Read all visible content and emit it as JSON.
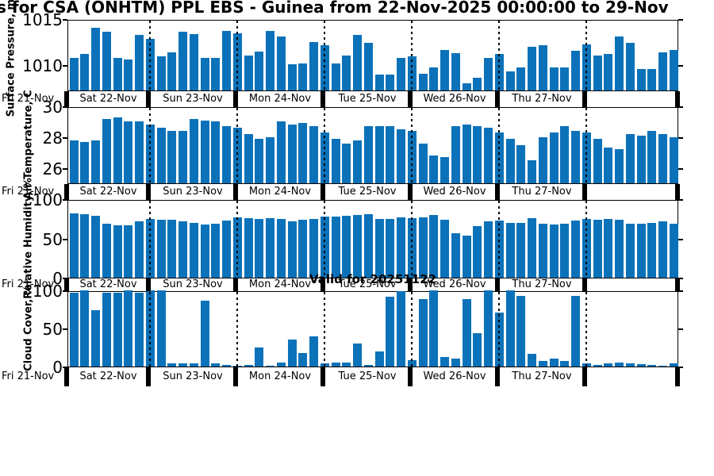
{
  "title": "s for CSA (ONHTM) PPL EBS  - Guinea from 22-Nov-2025 00:00:00 to 29-Nov",
  "valid_label": "Valid for 20251122",
  "colors": {
    "bar": "#0b72b9",
    "axis": "#000000",
    "background": "#ffffff"
  },
  "chart_data": {
    "type": "bar",
    "title": "s for CSA (ONHTM) PPL EBS  - Guinea from 22-Nov-2025 00:00:00 to 29-Nov",
    "annotation": "Valid for 20251122",
    "x_start_label": "Fri 21-Nov",
    "day_labels": [
      "Sat 22-Nov",
      "Sun 23-Nov",
      "Mon 24-Nov",
      "Tue 25-Nov",
      "Wed 26-Nov",
      "Thu 27-Nov"
    ],
    "bars_per_day": 8,
    "legend": "none",
    "grid": "dotted vertical lines at day boundaries",
    "panels": [
      {
        "id": "surface-pressure",
        "ylabel": "Surface Pressure, mb",
        "ymin": 1007.3,
        "ymax": 1015,
        "yticks": [
          {
            "v": 1010,
            "label": "1010"
          },
          {
            "v": 1015,
            "label": "1015"
          }
        ],
        "values": [
          1010.8,
          1011.2,
          1014.1,
          1013.6,
          1010.8,
          1010.6,
          1013.3,
          1012.9,
          1011.0,
          1011.4,
          1013.6,
          1013.4,
          1010.8,
          1010.8,
          1013.7,
          1013.5,
          1011.1,
          1011.5,
          1013.7,
          1013.1,
          1010.1,
          1010.2,
          1012.5,
          1012.2,
          1010.2,
          1011.1,
          1013.3,
          1012.4,
          1009.0,
          1009.0,
          1010.8,
          1011.0,
          1009.1,
          1009.8,
          1011.7,
          1011.3,
          1008.1,
          1008.7,
          1010.8,
          1011.2,
          1009.4,
          1009.8,
          1012.0,
          1012.2,
          1009.8,
          1009.8,
          1011.6,
          1012.3,
          1011.1,
          1011.2,
          1013.1,
          1012.4,
          1009.6,
          1009.6,
          1011.4,
          1011.7
        ]
      },
      {
        "id": "air-temperature",
        "ylabel": "Air Temperature, C",
        "ymin": 25,
        "ymax": 30,
        "yticks": [
          {
            "v": 26,
            "label": "26"
          },
          {
            "v": 28,
            "label": "28"
          },
          {
            "v": 30,
            "label": "30"
          }
        ],
        "values": [
          27.8,
          27.7,
          27.8,
          29.2,
          29.3,
          29.0,
          29.0,
          28.8,
          28.6,
          28.4,
          28.4,
          29.2,
          29.1,
          29.0,
          28.7,
          28.6,
          28.2,
          27.9,
          28.0,
          29.0,
          28.8,
          28.9,
          28.7,
          28.3,
          27.9,
          27.6,
          27.8,
          28.7,
          28.7,
          28.7,
          28.5,
          28.4,
          27.6,
          26.8,
          26.7,
          28.7,
          28.8,
          28.7,
          28.6,
          28.3,
          27.9,
          27.5,
          26.5,
          28.0,
          28.3,
          28.7,
          28.4,
          28.3,
          27.9,
          27.3,
          27.2,
          28.2,
          28.1,
          28.4,
          28.2,
          28.0
        ]
      },
      {
        "id": "relative-humidity",
        "ylabel": "Relative Humidity, %",
        "ymin": 0,
        "ymax": 100,
        "yticks": [
          {
            "v": 0,
            "label": "0"
          },
          {
            "v": 50,
            "label": "50"
          },
          {
            "v": 100,
            "label": "100"
          }
        ],
        "values": [
          82,
          81,
          79,
          69,
          67,
          67,
          72,
          75,
          74,
          74,
          72,
          70,
          68,
          69,
          73,
          77,
          76,
          75,
          76,
          75,
          72,
          74,
          75,
          78,
          78,
          79,
          80,
          81,
          75,
          75,
          77,
          76,
          77,
          80,
          74,
          57,
          54,
          66,
          72,
          73,
          70,
          70,
          76,
          69,
          68,
          69,
          73,
          75,
          74,
          75,
          74,
          69,
          69,
          70,
          72,
          69
        ]
      },
      {
        "id": "cloud-cover",
        "ylabel": "Cloud Cover, %",
        "ymin": 0,
        "ymax": 100,
        "yticks": [
          {
            "v": 0,
            "label": "0"
          },
          {
            "v": 50,
            "label": "50"
          },
          {
            "v": 100,
            "label": "100"
          }
        ],
        "values": [
          97,
          100,
          74,
          97,
          97,
          100,
          97,
          100,
          100,
          4,
          4,
          4,
          87,
          4,
          2,
          1,
          2,
          25,
          1,
          5,
          35,
          18,
          40,
          4,
          5,
          5,
          30,
          2,
          20,
          92,
          99,
          8,
          89,
          100,
          13,
          10,
          89,
          44,
          100,
          71,
          100,
          93,
          17,
          7,
          10,
          7,
          93,
          4,
          2,
          4,
          5,
          4,
          3,
          2,
          1,
          4
        ]
      }
    ]
  }
}
